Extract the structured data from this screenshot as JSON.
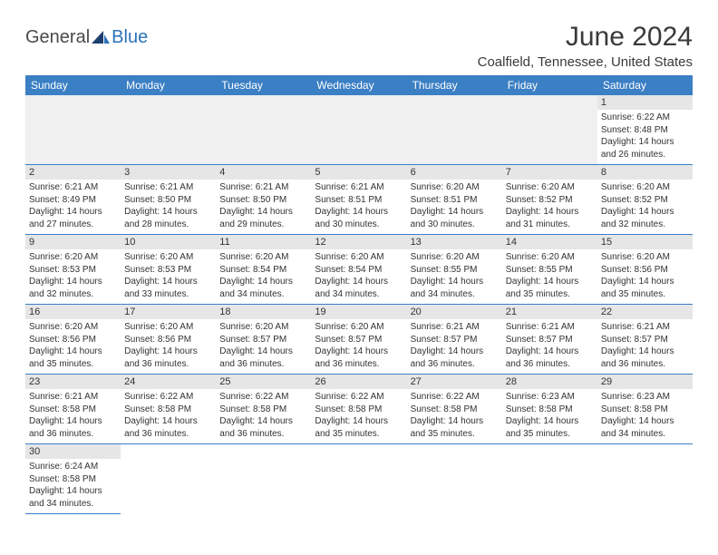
{
  "logo": {
    "text1": "General",
    "text2": "Blue"
  },
  "title": "June 2024",
  "location": "Coalfield, Tennessee, United States",
  "colors": {
    "header_bg": "#3b7fc4",
    "header_text": "#ffffff",
    "daynum_bg": "#e6e6e6",
    "border": "#3b7fc4",
    "empty_bg": "#f0f0f0",
    "logo_gray": "#4a4a4a",
    "logo_blue": "#2b72b9"
  },
  "weekdays": [
    "Sunday",
    "Monday",
    "Tuesday",
    "Wednesday",
    "Thursday",
    "Friday",
    "Saturday"
  ],
  "weeks": [
    [
      null,
      null,
      null,
      null,
      null,
      null,
      {
        "n": "1",
        "sr": "Sunrise: 6:22 AM",
        "ss": "Sunset: 8:48 PM",
        "d1": "Daylight: 14 hours",
        "d2": "and 26 minutes."
      }
    ],
    [
      {
        "n": "2",
        "sr": "Sunrise: 6:21 AM",
        "ss": "Sunset: 8:49 PM",
        "d1": "Daylight: 14 hours",
        "d2": "and 27 minutes."
      },
      {
        "n": "3",
        "sr": "Sunrise: 6:21 AM",
        "ss": "Sunset: 8:50 PM",
        "d1": "Daylight: 14 hours",
        "d2": "and 28 minutes."
      },
      {
        "n": "4",
        "sr": "Sunrise: 6:21 AM",
        "ss": "Sunset: 8:50 PM",
        "d1": "Daylight: 14 hours",
        "d2": "and 29 minutes."
      },
      {
        "n": "5",
        "sr": "Sunrise: 6:21 AM",
        "ss": "Sunset: 8:51 PM",
        "d1": "Daylight: 14 hours",
        "d2": "and 30 minutes."
      },
      {
        "n": "6",
        "sr": "Sunrise: 6:20 AM",
        "ss": "Sunset: 8:51 PM",
        "d1": "Daylight: 14 hours",
        "d2": "and 30 minutes."
      },
      {
        "n": "7",
        "sr": "Sunrise: 6:20 AM",
        "ss": "Sunset: 8:52 PM",
        "d1": "Daylight: 14 hours",
        "d2": "and 31 minutes."
      },
      {
        "n": "8",
        "sr": "Sunrise: 6:20 AM",
        "ss": "Sunset: 8:52 PM",
        "d1": "Daylight: 14 hours",
        "d2": "and 32 minutes."
      }
    ],
    [
      {
        "n": "9",
        "sr": "Sunrise: 6:20 AM",
        "ss": "Sunset: 8:53 PM",
        "d1": "Daylight: 14 hours",
        "d2": "and 32 minutes."
      },
      {
        "n": "10",
        "sr": "Sunrise: 6:20 AM",
        "ss": "Sunset: 8:53 PM",
        "d1": "Daylight: 14 hours",
        "d2": "and 33 minutes."
      },
      {
        "n": "11",
        "sr": "Sunrise: 6:20 AM",
        "ss": "Sunset: 8:54 PM",
        "d1": "Daylight: 14 hours",
        "d2": "and 34 minutes."
      },
      {
        "n": "12",
        "sr": "Sunrise: 6:20 AM",
        "ss": "Sunset: 8:54 PM",
        "d1": "Daylight: 14 hours",
        "d2": "and 34 minutes."
      },
      {
        "n": "13",
        "sr": "Sunrise: 6:20 AM",
        "ss": "Sunset: 8:55 PM",
        "d1": "Daylight: 14 hours",
        "d2": "and 34 minutes."
      },
      {
        "n": "14",
        "sr": "Sunrise: 6:20 AM",
        "ss": "Sunset: 8:55 PM",
        "d1": "Daylight: 14 hours",
        "d2": "and 35 minutes."
      },
      {
        "n": "15",
        "sr": "Sunrise: 6:20 AM",
        "ss": "Sunset: 8:56 PM",
        "d1": "Daylight: 14 hours",
        "d2": "and 35 minutes."
      }
    ],
    [
      {
        "n": "16",
        "sr": "Sunrise: 6:20 AM",
        "ss": "Sunset: 8:56 PM",
        "d1": "Daylight: 14 hours",
        "d2": "and 35 minutes."
      },
      {
        "n": "17",
        "sr": "Sunrise: 6:20 AM",
        "ss": "Sunset: 8:56 PM",
        "d1": "Daylight: 14 hours",
        "d2": "and 36 minutes."
      },
      {
        "n": "18",
        "sr": "Sunrise: 6:20 AM",
        "ss": "Sunset: 8:57 PM",
        "d1": "Daylight: 14 hours",
        "d2": "and 36 minutes."
      },
      {
        "n": "19",
        "sr": "Sunrise: 6:20 AM",
        "ss": "Sunset: 8:57 PM",
        "d1": "Daylight: 14 hours",
        "d2": "and 36 minutes."
      },
      {
        "n": "20",
        "sr": "Sunrise: 6:21 AM",
        "ss": "Sunset: 8:57 PM",
        "d1": "Daylight: 14 hours",
        "d2": "and 36 minutes."
      },
      {
        "n": "21",
        "sr": "Sunrise: 6:21 AM",
        "ss": "Sunset: 8:57 PM",
        "d1": "Daylight: 14 hours",
        "d2": "and 36 minutes."
      },
      {
        "n": "22",
        "sr": "Sunrise: 6:21 AM",
        "ss": "Sunset: 8:57 PM",
        "d1": "Daylight: 14 hours",
        "d2": "and 36 minutes."
      }
    ],
    [
      {
        "n": "23",
        "sr": "Sunrise: 6:21 AM",
        "ss": "Sunset: 8:58 PM",
        "d1": "Daylight: 14 hours",
        "d2": "and 36 minutes."
      },
      {
        "n": "24",
        "sr": "Sunrise: 6:22 AM",
        "ss": "Sunset: 8:58 PM",
        "d1": "Daylight: 14 hours",
        "d2": "and 36 minutes."
      },
      {
        "n": "25",
        "sr": "Sunrise: 6:22 AM",
        "ss": "Sunset: 8:58 PM",
        "d1": "Daylight: 14 hours",
        "d2": "and 36 minutes."
      },
      {
        "n": "26",
        "sr": "Sunrise: 6:22 AM",
        "ss": "Sunset: 8:58 PM",
        "d1": "Daylight: 14 hours",
        "d2": "and 35 minutes."
      },
      {
        "n": "27",
        "sr": "Sunrise: 6:22 AM",
        "ss": "Sunset: 8:58 PM",
        "d1": "Daylight: 14 hours",
        "d2": "and 35 minutes."
      },
      {
        "n": "28",
        "sr": "Sunrise: 6:23 AM",
        "ss": "Sunset: 8:58 PM",
        "d1": "Daylight: 14 hours",
        "d2": "and 35 minutes."
      },
      {
        "n": "29",
        "sr": "Sunrise: 6:23 AM",
        "ss": "Sunset: 8:58 PM",
        "d1": "Daylight: 14 hours",
        "d2": "and 34 minutes."
      }
    ],
    [
      {
        "n": "30",
        "sr": "Sunrise: 6:24 AM",
        "ss": "Sunset: 8:58 PM",
        "d1": "Daylight: 14 hours",
        "d2": "and 34 minutes."
      },
      null,
      null,
      null,
      null,
      null,
      null
    ]
  ]
}
